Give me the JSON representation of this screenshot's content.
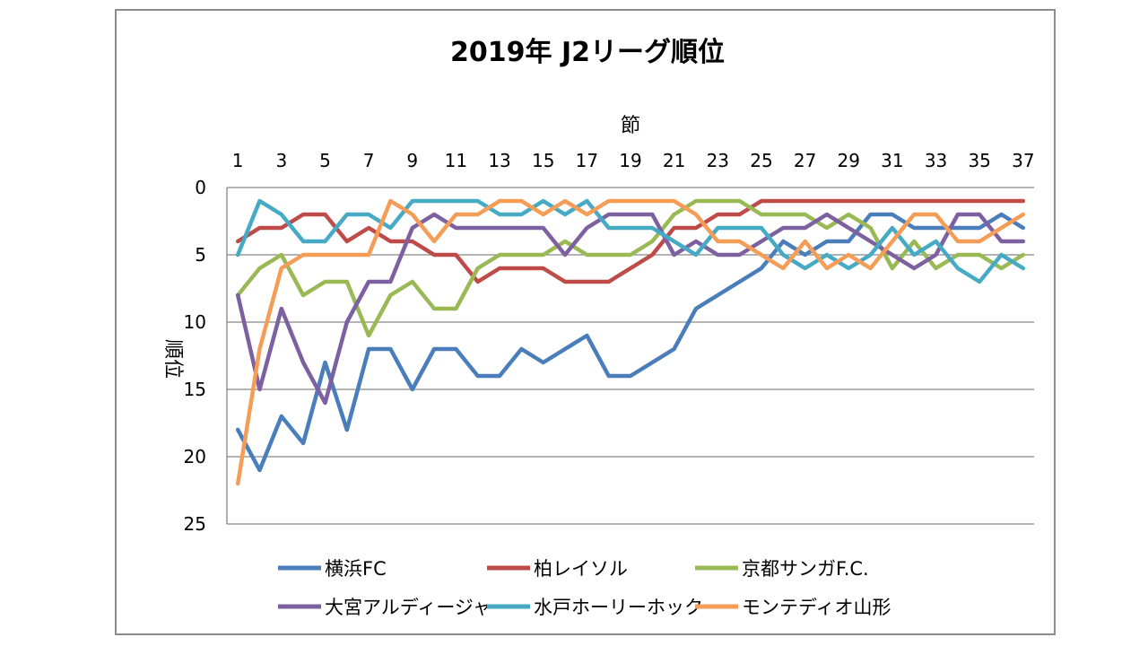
{
  "chart_data": {
    "type": "line",
    "title": "2019年 J2リーグ順位",
    "xlabel": "節",
    "ylabel": "順位",
    "x": [
      1,
      2,
      3,
      4,
      5,
      6,
      7,
      8,
      9,
      10,
      11,
      12,
      13,
      14,
      15,
      16,
      17,
      18,
      19,
      20,
      21,
      22,
      23,
      24,
      25,
      26,
      27,
      28,
      29,
      30,
      31,
      32,
      33,
      34,
      35,
      36,
      37
    ],
    "xticks": [
      "1",
      "3",
      "5",
      "7",
      "9",
      "11",
      "13",
      "15",
      "17",
      "19",
      "21",
      "23",
      "25",
      "27",
      "29",
      "31",
      "33",
      "35",
      "37"
    ],
    "yticks": [
      "0",
      "5",
      "10",
      "15",
      "20",
      "25"
    ],
    "ylim": [
      0,
      25
    ],
    "y_inverted": true,
    "x_axis_position": "top",
    "grid": true,
    "legend_position": "bottom",
    "series": [
      {
        "name": "横浜FC",
        "color": "#4a7ebb",
        "values": [
          18,
          21,
          17,
          19,
          13,
          18,
          12,
          12,
          15,
          12,
          12,
          14,
          14,
          12,
          13,
          12,
          11,
          14,
          14,
          13,
          12,
          9,
          8,
          7,
          6,
          4,
          5,
          4,
          4,
          2,
          2,
          3,
          3,
          3,
          3,
          2,
          3
        ]
      },
      {
        "name": "柏レイソル",
        "color": "#be4b48",
        "values": [
          4,
          3,
          3,
          2,
          2,
          4,
          3,
          4,
          4,
          5,
          5,
          7,
          6,
          6,
          6,
          7,
          7,
          7,
          6,
          5,
          3,
          3,
          2,
          2,
          1,
          1,
          1,
          1,
          1,
          1,
          1,
          1,
          1,
          1,
          1,
          1,
          1
        ]
      },
      {
        "name": "京都サンガF.C.",
        "color": "#98b954",
        "values": [
          8,
          6,
          5,
          8,
          7,
          7,
          11,
          8,
          7,
          9,
          9,
          6,
          5,
          5,
          5,
          4,
          5,
          5,
          5,
          4,
          2,
          1,
          1,
          1,
          2,
          2,
          2,
          3,
          2,
          3,
          6,
          4,
          6,
          5,
          5,
          6,
          5
        ]
      },
      {
        "name": "大宮アルディージャ",
        "color": "#7d60a0",
        "values": [
          8,
          15,
          9,
          13,
          16,
          10,
          7,
          7,
          3,
          2,
          3,
          3,
          3,
          3,
          3,
          5,
          3,
          2,
          2,
          2,
          5,
          4,
          5,
          5,
          4,
          3,
          3,
          2,
          3,
          4,
          5,
          6,
          5,
          2,
          2,
          4,
          4
        ]
      },
      {
        "name": "水戸ホーリーホック",
        "color": "#46aac5",
        "values": [
          5,
          1,
          2,
          4,
          4,
          2,
          2,
          3,
          1,
          1,
          1,
          1,
          2,
          2,
          1,
          2,
          1,
          3,
          3,
          3,
          4,
          5,
          3,
          3,
          3,
          5,
          6,
          5,
          6,
          5,
          3,
          5,
          4,
          6,
          7,
          5,
          6
        ]
      },
      {
        "name": "モンテディオ山形",
        "color": "#f59d56",
        "values": [
          22,
          12,
          6,
          5,
          5,
          5,
          5,
          1,
          2,
          4,
          2,
          2,
          1,
          1,
          2,
          1,
          2,
          1,
          1,
          1,
          1,
          2,
          4,
          4,
          5,
          6,
          4,
          6,
          5,
          6,
          4,
          2,
          2,
          4,
          4,
          3,
          2
        ]
      }
    ]
  }
}
